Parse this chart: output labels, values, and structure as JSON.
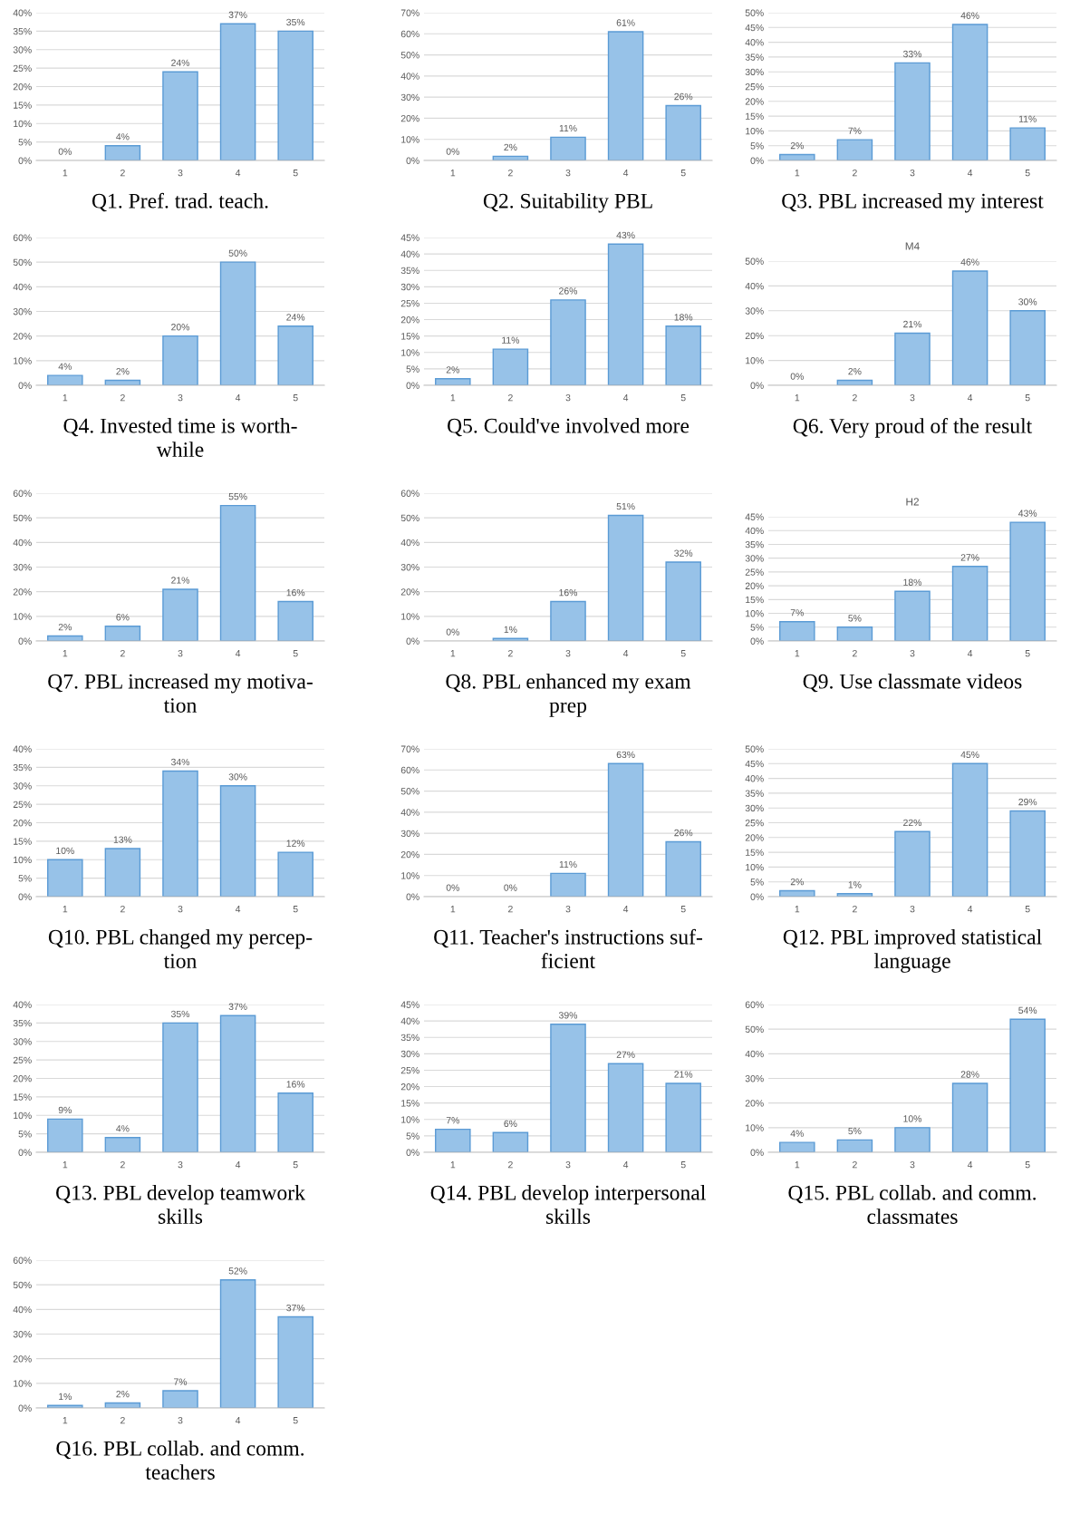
{
  "chart_data": [
    {
      "type": "bar",
      "categories": [
        "1",
        "2",
        "3",
        "4",
        "5"
      ],
      "values": [
        0,
        4,
        24,
        37,
        35
      ],
      "value_labels": [
        "0%",
        "4%",
        "24%",
        "37%",
        "35%"
      ],
      "color": "#97c2e8",
      "ylim": [
        0,
        40
      ],
      "yticks": [
        {
          "value": 0,
          "label": "0%"
        },
        {
          "value": 5,
          "label": "5%"
        },
        {
          "value": 10,
          "label": "10%"
        },
        {
          "value": 15,
          "label": "15%"
        },
        {
          "value": 20,
          "label": "20%"
        },
        {
          "value": 25,
          "label": "25%"
        },
        {
          "value": 30,
          "label": "30%"
        },
        {
          "value": 35,
          "label": "35%"
        },
        {
          "value": 40,
          "label": "40%"
        }
      ],
      "grid": "y",
      "annotations": [
        "Q1. Pref. trad. teach."
      ]
    },
    {
      "type": "bar",
      "categories": [
        "1",
        "2",
        "3",
        "4",
        "5"
      ],
      "values": [
        0,
        2,
        11,
        61,
        26
      ],
      "value_labels": [
        "0%",
        "2%",
        "11%",
        "61%",
        "26%"
      ],
      "color": "#97c2e8",
      "ylim": [
        0,
        70
      ],
      "yticks": [
        {
          "value": 0,
          "label": "0%"
        },
        {
          "value": 10,
          "label": "10%"
        },
        {
          "value": 20,
          "label": "20%"
        },
        {
          "value": 30,
          "label": "30%"
        },
        {
          "value": 40,
          "label": "40%"
        },
        {
          "value": 50,
          "label": "50%"
        },
        {
          "value": 60,
          "label": "60%"
        },
        {
          "value": 70,
          "label": "70%"
        }
      ],
      "grid": "y",
      "annotations": [
        "Q2. Suitability PBL"
      ]
    },
    {
      "type": "bar",
      "categories": [
        "1",
        "2",
        "3",
        "4",
        "5"
      ],
      "values": [
        2,
        7,
        33,
        46,
        11
      ],
      "value_labels": [
        "2%",
        "7%",
        "33%",
        "46%",
        "11%"
      ],
      "color": "#97c2e8",
      "ylim": [
        0,
        50
      ],
      "yticks": [
        {
          "value": 0,
          "label": "0%"
        },
        {
          "value": 5,
          "label": "5%"
        },
        {
          "value": 10,
          "label": "10%"
        },
        {
          "value": 15,
          "label": "15%"
        },
        {
          "value": 20,
          "label": "20%"
        },
        {
          "value": 25,
          "label": "25%"
        },
        {
          "value": 30,
          "label": "30%"
        },
        {
          "value": 35,
          "label": "35%"
        },
        {
          "value": 40,
          "label": "40%"
        },
        {
          "value": 45,
          "label": "45%"
        },
        {
          "value": 50,
          "label": "50%"
        }
      ],
      "grid": "y",
      "annotations": [
        "Q3. PBL increased my interest"
      ]
    },
    {
      "type": "bar",
      "categories": [
        "1",
        "2",
        "3",
        "4",
        "5"
      ],
      "values": [
        4,
        2,
        20,
        50,
        24
      ],
      "value_labels": [
        "4%",
        "2%",
        "20%",
        "50%",
        "24%"
      ],
      "color": "#97c2e8",
      "ylim": [
        0,
        60
      ],
      "yticks": [
        {
          "value": 0,
          "label": "0%"
        },
        {
          "value": 10,
          "label": "10%"
        },
        {
          "value": 20,
          "label": "20%"
        },
        {
          "value": 30,
          "label": "30%"
        },
        {
          "value": 40,
          "label": "40%"
        },
        {
          "value": 50,
          "label": "50%"
        },
        {
          "value": 60,
          "label": "60%"
        }
      ],
      "grid": "y",
      "annotations": [
        "Q4. Invested time is worth-\nwhile"
      ]
    },
    {
      "type": "bar",
      "categories": [
        "1",
        "2",
        "3",
        "4",
        "5"
      ],
      "values": [
        2,
        11,
        26,
        43,
        18
      ],
      "value_labels": [
        "2%",
        "11%",
        "26%",
        "43%",
        "18%"
      ],
      "color": "#97c2e8",
      "ylim": [
        0,
        45
      ],
      "yticks": [
        {
          "value": 0,
          "label": "0%"
        },
        {
          "value": 5,
          "label": "5%"
        },
        {
          "value": 10,
          "label": "10%"
        },
        {
          "value": 15,
          "label": "15%"
        },
        {
          "value": 20,
          "label": "20%"
        },
        {
          "value": 25,
          "label": "25%"
        },
        {
          "value": 30,
          "label": "30%"
        },
        {
          "value": 35,
          "label": "35%"
        },
        {
          "value": 40,
          "label": "40%"
        },
        {
          "value": 45,
          "label": "45%"
        }
      ],
      "grid": "y",
      "annotations": [
        "Q5. Could've involved more"
      ]
    },
    {
      "type": "bar",
      "title": "M4",
      "categories": [
        "1",
        "2",
        "3",
        "4",
        "5"
      ],
      "values": [
        0,
        2,
        21,
        46,
        30
      ],
      "value_labels": [
        "0%",
        "2%",
        "21%",
        "46%",
        "30%"
      ],
      "color": "#97c2e8",
      "ylim": [
        0,
        50
      ],
      "yticks": [
        {
          "value": 0,
          "label": "0%"
        },
        {
          "value": 10,
          "label": "10%"
        },
        {
          "value": 20,
          "label": "20%"
        },
        {
          "value": 30,
          "label": "30%"
        },
        {
          "value": 40,
          "label": "40%"
        },
        {
          "value": 50,
          "label": "50%"
        }
      ],
      "grid": "y",
      "annotations": [
        "Q6. Very proud of the result"
      ]
    },
    {
      "type": "bar",
      "categories": [
        "1",
        "2",
        "3",
        "4",
        "5"
      ],
      "values": [
        2,
        6,
        21,
        55,
        16
      ],
      "value_labels": [
        "2%",
        "6%",
        "21%",
        "55%",
        "16%"
      ],
      "color": "#97c2e8",
      "ylim": [
        0,
        60
      ],
      "yticks": [
        {
          "value": 0,
          "label": "0%"
        },
        {
          "value": 10,
          "label": "10%"
        },
        {
          "value": 20,
          "label": "20%"
        },
        {
          "value": 30,
          "label": "30%"
        },
        {
          "value": 40,
          "label": "40%"
        },
        {
          "value": 50,
          "label": "50%"
        },
        {
          "value": 60,
          "label": "60%"
        }
      ],
      "grid": "y",
      "annotations": [
        "Q7. PBL increased my motiva-\ntion"
      ]
    },
    {
      "type": "bar",
      "categories": [
        "1",
        "2",
        "3",
        "4",
        "5"
      ],
      "values": [
        0,
        1,
        16,
        51,
        32
      ],
      "value_labels": [
        "0%",
        "1%",
        "16%",
        "51%",
        "32%"
      ],
      "color": "#97c2e8",
      "ylim": [
        0,
        60
      ],
      "yticks": [
        {
          "value": 0,
          "label": "0%"
        },
        {
          "value": 10,
          "label": "10%"
        },
        {
          "value": 20,
          "label": "20%"
        },
        {
          "value": 30,
          "label": "30%"
        },
        {
          "value": 40,
          "label": "40%"
        },
        {
          "value": 50,
          "label": "50%"
        },
        {
          "value": 60,
          "label": "60%"
        }
      ],
      "grid": "y",
      "annotations": [
        "Q8. PBL enhanced my exam\nprep"
      ]
    },
    {
      "type": "bar",
      "title": "H2",
      "categories": [
        "1",
        "2",
        "3",
        "4",
        "5"
      ],
      "values": [
        7,
        5,
        18,
        27,
        43
      ],
      "value_labels": [
        "7%",
        "5%",
        "18%",
        "27%",
        "43%"
      ],
      "color": "#97c2e8",
      "ylim": [
        0,
        45
      ],
      "yticks": [
        {
          "value": 0,
          "label": "0%"
        },
        {
          "value": 5,
          "label": "5%"
        },
        {
          "value": 10,
          "label": "10%"
        },
        {
          "value": 15,
          "label": "15%"
        },
        {
          "value": 20,
          "label": "20%"
        },
        {
          "value": 25,
          "label": "25%"
        },
        {
          "value": 30,
          "label": "30%"
        },
        {
          "value": 35,
          "label": "35%"
        },
        {
          "value": 40,
          "label": "40%"
        },
        {
          "value": 45,
          "label": "45%"
        }
      ],
      "grid": "y",
      "annotations": [
        "Q9. Use classmate videos"
      ]
    },
    {
      "type": "bar",
      "categories": [
        "1",
        "2",
        "3",
        "4",
        "5"
      ],
      "values": [
        10,
        13,
        34,
        30,
        12
      ],
      "value_labels": [
        "10%",
        "13%",
        "34%",
        "30%",
        "12%"
      ],
      "color": "#97c2e8",
      "ylim": [
        0,
        40
      ],
      "yticks": [
        {
          "value": 0,
          "label": "0%"
        },
        {
          "value": 5,
          "label": "5%"
        },
        {
          "value": 10,
          "label": "10%"
        },
        {
          "value": 15,
          "label": "15%"
        },
        {
          "value": 20,
          "label": "20%"
        },
        {
          "value": 25,
          "label": "25%"
        },
        {
          "value": 30,
          "label": "30%"
        },
        {
          "value": 35,
          "label": "35%"
        },
        {
          "value": 40,
          "label": "40%"
        }
      ],
      "grid": "y",
      "annotations": [
        "Q10. PBL changed my percep-\ntion"
      ]
    },
    {
      "type": "bar",
      "categories": [
        "1",
        "2",
        "3",
        "4",
        "5"
      ],
      "values": [
        0,
        0,
        11,
        63,
        26
      ],
      "value_labels": [
        "0%",
        "0%",
        "11%",
        "63%",
        "26%"
      ],
      "color": "#97c2e8",
      "ylim": [
        0,
        70
      ],
      "yticks": [
        {
          "value": 0,
          "label": "0%"
        },
        {
          "value": 10,
          "label": "10%"
        },
        {
          "value": 20,
          "label": "20%"
        },
        {
          "value": 30,
          "label": "30%"
        },
        {
          "value": 40,
          "label": "40%"
        },
        {
          "value": 50,
          "label": "50%"
        },
        {
          "value": 60,
          "label": "60%"
        },
        {
          "value": 70,
          "label": "70%"
        }
      ],
      "grid": "y",
      "annotations": [
        "Q11. Teacher's instructions suf-\nficient"
      ]
    },
    {
      "type": "bar",
      "categories": [
        "1",
        "2",
        "3",
        "4",
        "5"
      ],
      "values": [
        2,
        1,
        22,
        45,
        29
      ],
      "value_labels": [
        "2%",
        "1%",
        "22%",
        "45%",
        "29%"
      ],
      "color": "#97c2e8",
      "ylim": [
        0,
        50
      ],
      "yticks": [
        {
          "value": 0,
          "label": "0%"
        },
        {
          "value": 5,
          "label": "5%"
        },
        {
          "value": 10,
          "label": "10%"
        },
        {
          "value": 15,
          "label": "15%"
        },
        {
          "value": 20,
          "label": "20%"
        },
        {
          "value": 25,
          "label": "25%"
        },
        {
          "value": 30,
          "label": "30%"
        },
        {
          "value": 35,
          "label": "35%"
        },
        {
          "value": 40,
          "label": "40%"
        },
        {
          "value": 45,
          "label": "45%"
        },
        {
          "value": 50,
          "label": "50%"
        }
      ],
      "grid": "y",
      "annotations": [
        "Q12. PBL improved statistical\nlanguage"
      ]
    },
    {
      "type": "bar",
      "categories": [
        "1",
        "2",
        "3",
        "4",
        "5"
      ],
      "values": [
        9,
        4,
        35,
        37,
        16
      ],
      "value_labels": [
        "9%",
        "4%",
        "35%",
        "37%",
        "16%"
      ],
      "color": "#97c2e8",
      "ylim": [
        0,
        40
      ],
      "yticks": [
        {
          "value": 0,
          "label": "0%"
        },
        {
          "value": 5,
          "label": "5%"
        },
        {
          "value": 10,
          "label": "10%"
        },
        {
          "value": 15,
          "label": "15%"
        },
        {
          "value": 20,
          "label": "20%"
        },
        {
          "value": 25,
          "label": "25%"
        },
        {
          "value": 30,
          "label": "30%"
        },
        {
          "value": 35,
          "label": "35%"
        },
        {
          "value": 40,
          "label": "40%"
        }
      ],
      "grid": "y",
      "annotations": [
        "Q13. PBL develop teamwork\nskills"
      ]
    },
    {
      "type": "bar",
      "categories": [
        "1",
        "2",
        "3",
        "4",
        "5"
      ],
      "values": [
        7,
        6,
        39,
        27,
        21
      ],
      "value_labels": [
        "7%",
        "6%",
        "39%",
        "27%",
        "21%"
      ],
      "color": "#97c2e8",
      "ylim": [
        0,
        45
      ],
      "yticks": [
        {
          "value": 0,
          "label": "0%"
        },
        {
          "value": 5,
          "label": "5%"
        },
        {
          "value": 10,
          "label": "10%"
        },
        {
          "value": 15,
          "label": "15%"
        },
        {
          "value": 20,
          "label": "20%"
        },
        {
          "value": 25,
          "label": "25%"
        },
        {
          "value": 30,
          "label": "30%"
        },
        {
          "value": 35,
          "label": "35%"
        },
        {
          "value": 40,
          "label": "40%"
        },
        {
          "value": 45,
          "label": "45%"
        }
      ],
      "grid": "y",
      "annotations": [
        "Q14. PBL develop interpersonal\nskills"
      ]
    },
    {
      "type": "bar",
      "categories": [
        "1",
        "2",
        "3",
        "4",
        "5"
      ],
      "values": [
        4,
        5,
        10,
        28,
        54
      ],
      "value_labels": [
        "4%",
        "5%",
        "10%",
        "28%",
        "54%"
      ],
      "color": "#97c2e8",
      "ylim": [
        0,
        60
      ],
      "yticks": [
        {
          "value": 0,
          "label": "0%"
        },
        {
          "value": 10,
          "label": "10%"
        },
        {
          "value": 20,
          "label": "20%"
        },
        {
          "value": 30,
          "label": "30%"
        },
        {
          "value": 40,
          "label": "40%"
        },
        {
          "value": 50,
          "label": "50%"
        },
        {
          "value": 60,
          "label": "60%"
        }
      ],
      "grid": "y",
      "annotations": [
        "Q15. PBL collab. and comm.\nclassmates"
      ]
    },
    {
      "type": "bar",
      "categories": [
        "1",
        "2",
        "3",
        "4",
        "5"
      ],
      "values": [
        1,
        2,
        7,
        52,
        37
      ],
      "value_labels": [
        "1%",
        "2%",
        "7%",
        "52%",
        "37%"
      ],
      "color": "#97c2e8",
      "ylim": [
        0,
        60
      ],
      "yticks": [
        {
          "value": 0,
          "label": "0%"
        },
        {
          "value": 10,
          "label": "10%"
        },
        {
          "value": 20,
          "label": "20%"
        },
        {
          "value": 30,
          "label": "30%"
        },
        {
          "value": 40,
          "label": "40%"
        },
        {
          "value": 50,
          "label": "50%"
        },
        {
          "value": 60,
          "label": "60%"
        }
      ],
      "grid": "y",
      "annotations": [
        "Q16. PBL collab. and comm.\nteachers"
      ]
    }
  ]
}
